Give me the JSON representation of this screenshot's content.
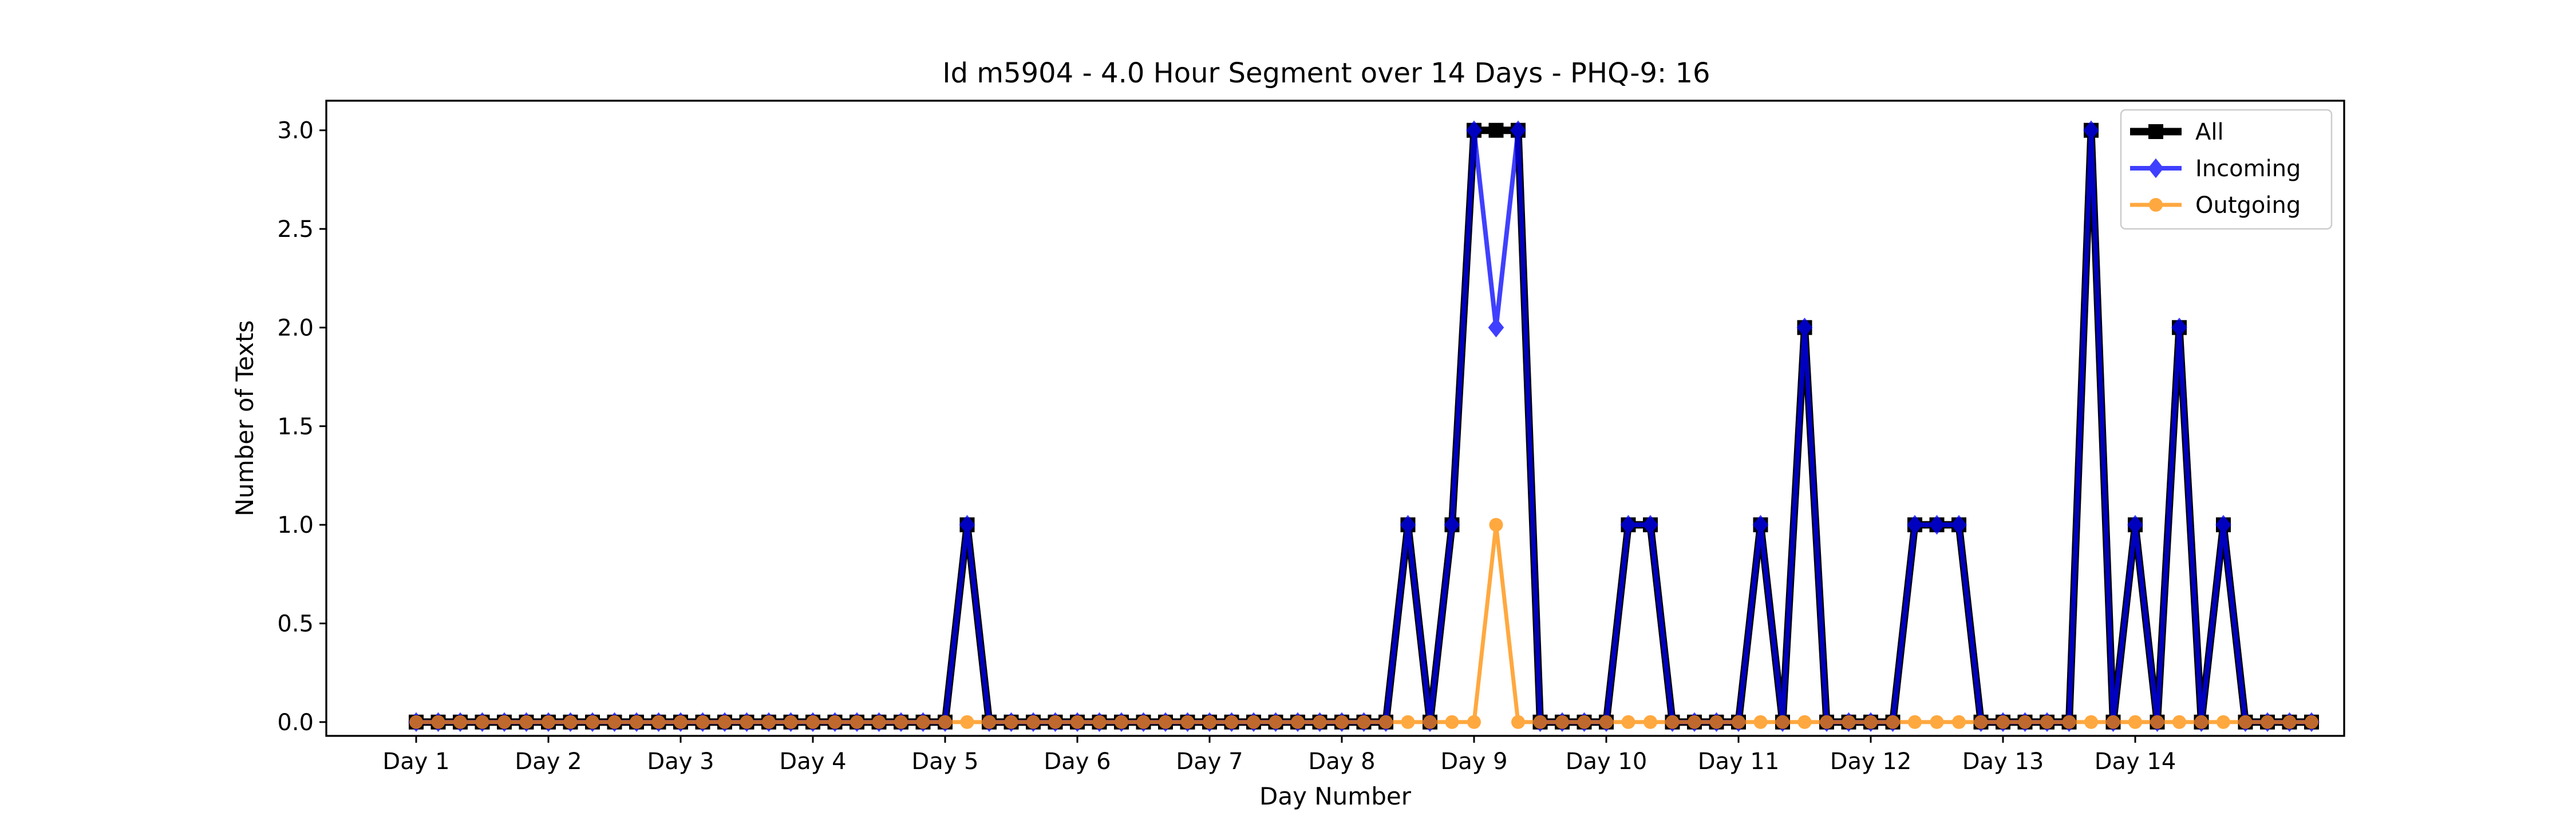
{
  "chart_data": {
    "type": "line",
    "title": "Id m5904 - 4.0 Hour Segment over 14 Days - PHQ-9: 16",
    "xlabel": "Day Number",
    "ylabel": "Number of Texts",
    "x_tick_labels": [
      "Day 1",
      "Day 2",
      "Day 3",
      "Day 4",
      "Day 5",
      "Day 6",
      "Day 7",
      "Day 8",
      "Day 9",
      "Day 10",
      "Day 11",
      "Day 12",
      "Day 13",
      "Day 14"
    ],
    "y_tick_labels": [
      "0.0",
      "0.5",
      "1.0",
      "1.5",
      "2.0",
      "2.5",
      "3.0"
    ],
    "ylim": [
      -0.07,
      3.15
    ],
    "points_per_day": 6,
    "grid": false,
    "legend_position": "upper right",
    "series": [
      {
        "name": "All",
        "color": "#000000",
        "marker": "square",
        "values": [
          0,
          0,
          0,
          0,
          0,
          0,
          0,
          0,
          0,
          0,
          0,
          0,
          0,
          0,
          0,
          0,
          0,
          0,
          0,
          0,
          0,
          0,
          0,
          0,
          0,
          1,
          0,
          0,
          0,
          0,
          0,
          0,
          0,
          0,
          0,
          0,
          0,
          0,
          0,
          0,
          0,
          0,
          0,
          0,
          0,
          1,
          0,
          1,
          3,
          3,
          3,
          0,
          0,
          0,
          0,
          1,
          1,
          0,
          0,
          0,
          0,
          1,
          0,
          2,
          0,
          0,
          0,
          0,
          1,
          1,
          1,
          0,
          0,
          0,
          0,
          0,
          3,
          0,
          1,
          0,
          2,
          0,
          1,
          0,
          0,
          0,
          0
        ]
      },
      {
        "name": "Incoming",
        "color": "#0000ff",
        "marker": "diamond",
        "values": [
          0,
          0,
          0,
          0,
          0,
          0,
          0,
          0,
          0,
          0,
          0,
          0,
          0,
          0,
          0,
          0,
          0,
          0,
          0,
          0,
          0,
          0,
          0,
          0,
          0,
          1,
          0,
          0,
          0,
          0,
          0,
          0,
          0,
          0,
          0,
          0,
          0,
          0,
          0,
          0,
          0,
          0,
          0,
          0,
          0,
          1,
          0,
          1,
          3,
          2,
          3,
          0,
          0,
          0,
          0,
          1,
          1,
          0,
          0,
          0,
          0,
          1,
          0,
          2,
          0,
          0,
          0,
          0,
          1,
          1,
          1,
          0,
          0,
          0,
          0,
          0,
          3,
          0,
          1,
          0,
          2,
          0,
          1,
          0,
          0,
          0,
          0
        ]
      },
      {
        "name": "Outgoing",
        "color": "#ff8c00",
        "marker": "circle",
        "values": [
          0,
          0,
          0,
          0,
          0,
          0,
          0,
          0,
          0,
          0,
          0,
          0,
          0,
          0,
          0,
          0,
          0,
          0,
          0,
          0,
          0,
          0,
          0,
          0,
          0,
          0,
          0,
          0,
          0,
          0,
          0,
          0,
          0,
          0,
          0,
          0,
          0,
          0,
          0,
          0,
          0,
          0,
          0,
          0,
          0,
          0,
          0,
          0,
          0,
          1,
          0,
          0,
          0,
          0,
          0,
          0,
          0,
          0,
          0,
          0,
          0,
          0,
          0,
          0,
          0,
          0,
          0,
          0,
          0,
          0,
          0,
          0,
          0,
          0,
          0,
          0,
          0,
          0,
          0,
          0,
          0,
          0,
          0,
          0,
          0,
          0,
          0
        ]
      }
    ]
  }
}
